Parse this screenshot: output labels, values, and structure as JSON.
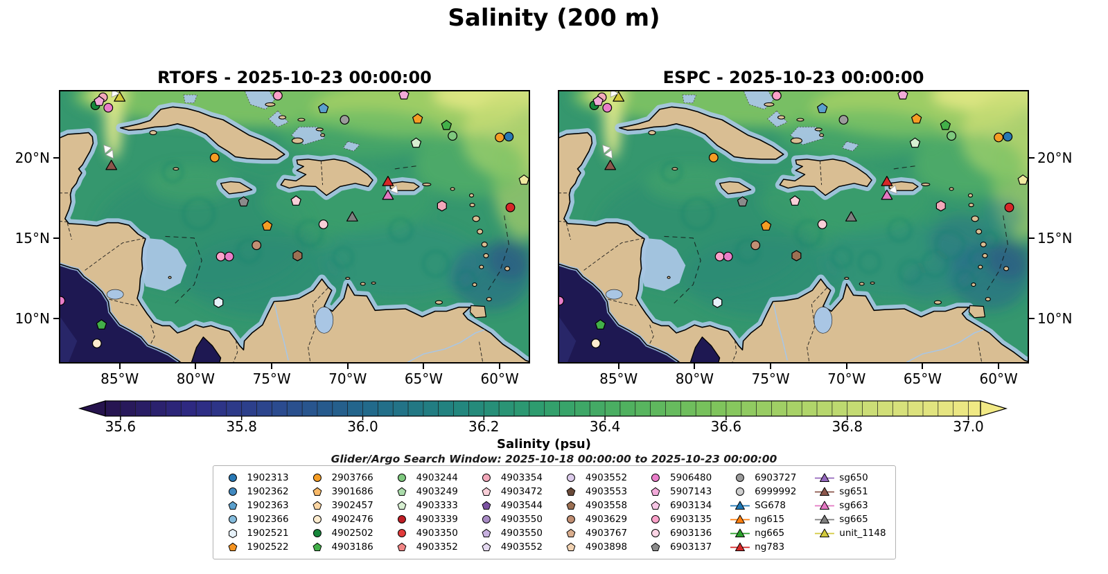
{
  "title": "Salinity (200 m)",
  "search_window": "Glider/Argo Search Window: 2025-10-18 00:00:00 to 2025-10-23 00:00:00",
  "chart_data": {
    "type": "heatmap",
    "title": "Salinity (200 m)",
    "variable": "Salinity",
    "depth": "200 m",
    "panels": [
      {
        "title": "RTOFS - 2025-10-23 00:00:00"
      },
      {
        "title": "ESPC - 2025-10-23 00:00:00"
      }
    ],
    "lon_range": [
      -89,
      -58
    ],
    "lat_range": [
      7.2,
      24.2
    ],
    "lon_ticks": [
      {
        "label": "85°W",
        "value": -85
      },
      {
        "label": "80°W",
        "value": -80
      },
      {
        "label": "75°W",
        "value": -75
      },
      {
        "label": "70°W",
        "value": -70
      },
      {
        "label": "65°W",
        "value": -65
      },
      {
        "label": "60°W",
        "value": -60
      }
    ],
    "lat_ticks": [
      {
        "label": "20°N",
        "value": 20
      },
      {
        "label": "15°N",
        "value": 15
      },
      {
        "label": "10°N",
        "value": 10
      }
    ],
    "colorbar": {
      "label": "Salinity (psu)",
      "ticks": [
        35.6,
        35.8,
        36.0,
        36.2,
        36.4,
        36.6,
        36.8,
        37.0
      ],
      "body_range": [
        35.575,
        37.02
      ],
      "level_step": 0.025,
      "stops": [
        "#26134d",
        "#2e2a84",
        "#2b4b8f",
        "#22698b",
        "#22857f",
        "#2f9e6e",
        "#51b25f",
        "#7fc45c",
        "#aed469",
        "#d5e07a",
        "#f1e985"
      ]
    },
    "markers": [
      {
        "lon": -85.0,
        "lat": 23.7,
        "shape": "triangle",
        "color": "#d2c93b"
      },
      {
        "lon": -85.35,
        "lat": 24.0,
        "shape": "wtriangle",
        "color": "#ffffff",
        "rot": -25
      },
      {
        "lon": -86.6,
        "lat": 23.25,
        "shape": "circle",
        "color": "#17873b"
      },
      {
        "lon": -86.1,
        "lat": 23.75,
        "shape": "circle",
        "color": "#f3a8ba"
      },
      {
        "lon": -85.75,
        "lat": 23.1,
        "shape": "circle",
        "color": "#e97dc9"
      },
      {
        "lon": -86.35,
        "lat": 23.5,
        "shape": "pentagon",
        "color": "#f2aad9"
      },
      {
        "lon": -85.85,
        "lat": 20.55,
        "shape": "wtriangle",
        "color": "#ffffff",
        "rot": -40
      },
      {
        "lon": -85.6,
        "lat": 20.2,
        "shape": "wtriangle",
        "color": "#ffffff",
        "rot": 25
      },
      {
        "lon": -85.55,
        "lat": 19.45,
        "shape": "triangle",
        "color": "#8c564b"
      },
      {
        "lon": -74.6,
        "lat": 23.85,
        "shape": "circle",
        "color": "#fba1c9"
      },
      {
        "lon": -71.6,
        "lat": 23.05,
        "shape": "pentagon",
        "color": "#5ba0cd"
      },
      {
        "lon": -70.2,
        "lat": 22.35,
        "shape": "circle",
        "color": "#9b9b9b"
      },
      {
        "lon": -66.3,
        "lat": 23.9,
        "shape": "pentagon",
        "color": "#f2aad9"
      },
      {
        "lon": -65.4,
        "lat": 22.4,
        "shape": "pentagon",
        "color": "#f59d24"
      },
      {
        "lon": -63.5,
        "lat": 22.0,
        "shape": "pentagon",
        "color": "#43b049"
      },
      {
        "lon": -63.1,
        "lat": 21.35,
        "shape": "circle",
        "color": "#7ec87e"
      },
      {
        "lon": -65.5,
        "lat": 20.9,
        "shape": "pentagon",
        "color": "#d7efd1"
      },
      {
        "lon": -60.0,
        "lat": 21.25,
        "shape": "circle",
        "color": "#f59d24"
      },
      {
        "lon": -59.4,
        "lat": 21.3,
        "shape": "circle",
        "color": "#2878b5"
      },
      {
        "lon": -78.75,
        "lat": 20.0,
        "shape": "circle",
        "color": "#f59d24"
      },
      {
        "lon": -76.85,
        "lat": 17.25,
        "shape": "pentagon",
        "color": "#8b8b8b"
      },
      {
        "lon": -73.4,
        "lat": 17.3,
        "shape": "pentagon",
        "color": "#f9cfd8"
      },
      {
        "lon": -67.35,
        "lat": 18.45,
        "shape": "triangle",
        "color": "#d62728"
      },
      {
        "lon": -67.35,
        "lat": 17.6,
        "shape": "triangle",
        "color": "#e377c2"
      },
      {
        "lon": -66.9,
        "lat": 18.0,
        "shape": "wtriangle",
        "color": "#ffffff",
        "rot": 140
      },
      {
        "lon": -58.4,
        "lat": 18.6,
        "shape": "pentagon",
        "color": "#efe9a0"
      },
      {
        "lon": -59.3,
        "lat": 16.9,
        "shape": "circle",
        "color": "#d62728"
      },
      {
        "lon": -63.8,
        "lat": 17.0,
        "shape": "hexagon",
        "color": "#f3a8ba"
      },
      {
        "lon": -69.7,
        "lat": 16.25,
        "shape": "triangle",
        "color": "#7f7f7f"
      },
      {
        "lon": -71.6,
        "lat": 15.85,
        "shape": "circle",
        "color": "#f9cfd8"
      },
      {
        "lon": -75.3,
        "lat": 15.75,
        "shape": "pentagon",
        "color": "#f59d24"
      },
      {
        "lon": -76.0,
        "lat": 14.55,
        "shape": "circle",
        "color": "#c18f73"
      },
      {
        "lon": -78.35,
        "lat": 13.85,
        "shape": "circle",
        "color": "#fba1c9"
      },
      {
        "lon": -77.8,
        "lat": 13.85,
        "shape": "circle",
        "color": "#e97dc9"
      },
      {
        "lon": -73.3,
        "lat": 13.9,
        "shape": "hexagon",
        "color": "#9c7053"
      },
      {
        "lon": -78.5,
        "lat": 11.0,
        "shape": "hexagon",
        "color": "#e6f1f9"
      },
      {
        "lon": -88.9,
        "lat": 11.1,
        "shape": "circle",
        "color": "#e97dc9"
      },
      {
        "lon": -86.2,
        "lat": 9.6,
        "shape": "pentagon",
        "color": "#43b049"
      },
      {
        "lon": -86.5,
        "lat": 8.45,
        "shape": "circle",
        "color": "#fdeccf"
      }
    ],
    "legend": [
      {
        "label": "1902313",
        "shape": "circle",
        "color": "#2878b5"
      },
      {
        "label": "1902362",
        "shape": "circle",
        "color": "#4189c0"
      },
      {
        "label": "1902363",
        "shape": "pentagon",
        "color": "#5ba0cd"
      },
      {
        "label": "1902366",
        "shape": "circle",
        "color": "#85bcdd"
      },
      {
        "label": "1902521",
        "shape": "hexagon",
        "color": "#e6f1f9"
      },
      {
        "label": "1902522",
        "shape": "pentagon",
        "color": "#f59320"
      },
      {
        "label": "2903766",
        "shape": "circle",
        "color": "#f59d24"
      },
      {
        "label": "3901686",
        "shape": "pentagon",
        "color": "#f8b968"
      },
      {
        "label": "3902457",
        "shape": "pentagon",
        "color": "#fbd6a4"
      },
      {
        "label": "4902476",
        "shape": "circle",
        "color": "#fdeccf"
      },
      {
        "label": "4902502",
        "shape": "circle",
        "color": "#17873b"
      },
      {
        "label": "4903186",
        "shape": "pentagon",
        "color": "#43b049"
      },
      {
        "label": "4903244",
        "shape": "circle",
        "color": "#7ec87e"
      },
      {
        "label": "4903249",
        "shape": "pentagon",
        "color": "#abdcab"
      },
      {
        "label": "4903333",
        "shape": "pentagon",
        "color": "#d7efd1"
      },
      {
        "label": "4903339",
        "shape": "circle",
        "color": "#bf1e25"
      },
      {
        "label": "4903350",
        "shape": "circle",
        "color": "#e23b3b"
      },
      {
        "label": "4903352",
        "shape": "pentagon",
        "color": "#f08585"
      },
      {
        "label": "4903354",
        "shape": "circle",
        "color": "#f3a8ba"
      },
      {
        "label": "4903472",
        "shape": "pentagon",
        "color": "#f9cfd8"
      },
      {
        "label": "4903544",
        "shape": "pentagon",
        "color": "#7b52a1"
      },
      {
        "label": "4903550",
        "shape": "circle",
        "color": "#a98cc5"
      },
      {
        "label": "4903550",
        "shape": "pentagon",
        "color": "#c7b0df"
      },
      {
        "label": "4903552",
        "shape": "pentagon",
        "color": "#e4d9f0"
      },
      {
        "label": "4903552",
        "shape": "circle",
        "color": "#dccbeb"
      },
      {
        "label": "4903553",
        "shape": "pentagon",
        "color": "#6a4a39"
      },
      {
        "label": "4903558",
        "shape": "pentagon",
        "color": "#9c7053"
      },
      {
        "label": "4903629",
        "shape": "circle",
        "color": "#c18f73"
      },
      {
        "label": "4903767",
        "shape": "pentagon",
        "color": "#d9ad8d"
      },
      {
        "label": "4903898",
        "shape": "pentagon",
        "color": "#f1d2b2"
      },
      {
        "label": "5906480",
        "shape": "circle",
        "color": "#e97dc9"
      },
      {
        "label": "5907143",
        "shape": "pentagon",
        "color": "#f2aad9"
      },
      {
        "label": "6903134",
        "shape": "pentagon",
        "color": "#f7c6e5"
      },
      {
        "label": "6903135",
        "shape": "circle",
        "color": "#fba1c9"
      },
      {
        "label": "6903136",
        "shape": "circle",
        "color": "#fcd4e5"
      },
      {
        "label": "6903137",
        "shape": "pentagon",
        "color": "#8b8b8b"
      },
      {
        "label": "6903727",
        "shape": "circle",
        "color": "#9b9b9b"
      },
      {
        "label": "6999992",
        "shape": "circle",
        "color": "#cfcfcf"
      },
      {
        "label": "SG678",
        "shape": "glider",
        "color": "#1f77b4"
      },
      {
        "label": "ng615",
        "shape": "glider",
        "color": "#ff7f0e"
      },
      {
        "label": "ng665",
        "shape": "glider",
        "color": "#2ca02c"
      },
      {
        "label": "ng783",
        "shape": "glider",
        "color": "#d62728"
      },
      {
        "label": "sg650",
        "shape": "gl ider",
        "color": "#9467bd"
      },
      {
        "label": "sg651",
        "shape": "glider",
        "color": "#8c564b"
      },
      {
        "label": "sg663",
        "shape": "glider",
        "color": "#e377c2"
      },
      {
        "label": "sg665",
        "shape": "glider",
        "color": "#7f7f7f"
      },
      {
        "label": "unit_1148",
        "shape": "glider",
        "color": "#d2c93b"
      }
    ]
  }
}
